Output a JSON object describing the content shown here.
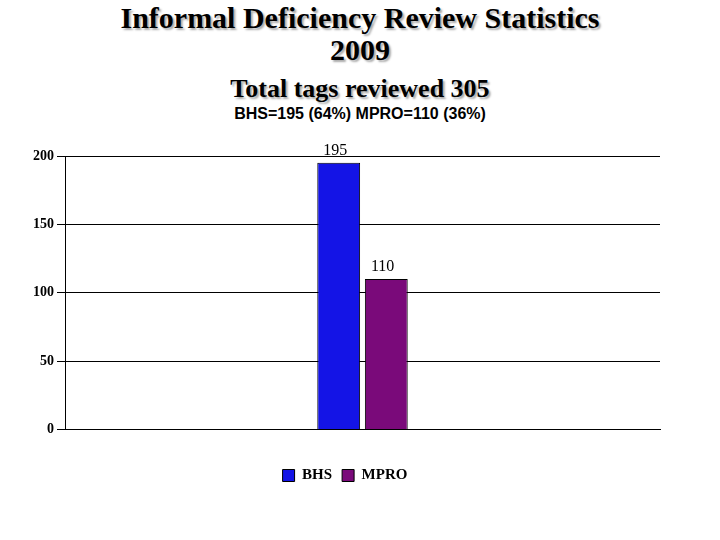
{
  "chart_data": {
    "type": "bar",
    "title": [
      "Informal Deficiency Review Statistics",
      "2009"
    ],
    "subtitle": [
      "Total tags reviewed 305",
      "BHS=195 (64%) MPRO=110 (36%)"
    ],
    "categories": [
      null
    ],
    "series": [
      {
        "name": "BHS",
        "color": "#1414e6",
        "values": [
          195
        ]
      },
      {
        "name": "MPRO",
        "color": "#7a0a7a",
        "values": [
          110
        ]
      }
    ],
    "ylim": [
      0,
      200
    ],
    "yticks": [
      0,
      50,
      100,
      150,
      200
    ],
    "grid": true,
    "legend": "bottom",
    "data_labels": true
  }
}
